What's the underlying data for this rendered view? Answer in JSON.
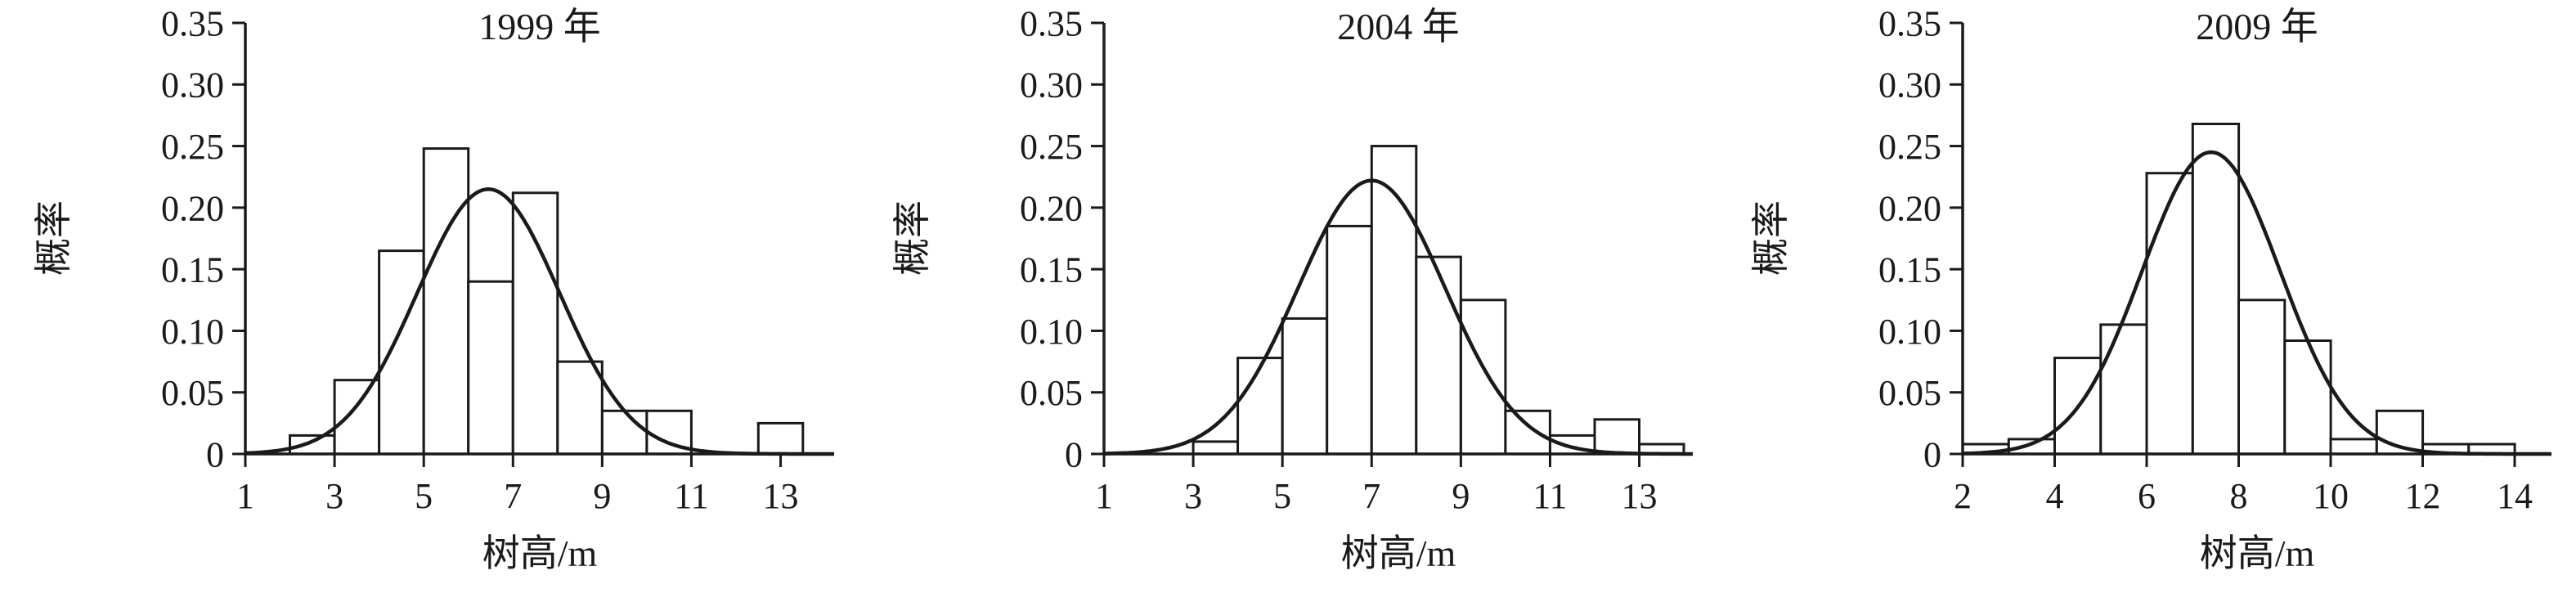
{
  "figure": {
    "background": "#ffffff",
    "ink": "#1a1a1a"
  },
  "chart_data": [
    {
      "type": "bar",
      "subtype": "histogram-with-normal-curve",
      "title": "1999 年",
      "xlabel": "树高/m",
      "ylabel": "概率",
      "xlim": [
        1,
        14.2
      ],
      "ylim": [
        0,
        0.35
      ],
      "xticks": [
        1,
        3,
        5,
        7,
        9,
        11,
        13
      ],
      "yticks": [
        0,
        0.05,
        0.1,
        0.15,
        0.2,
        0.25,
        0.3,
        0.35
      ],
      "ytick_labels": [
        "0",
        "0.05",
        "0.10",
        "0.15",
        "0.20",
        "0.25",
        "0.30",
        "0.35"
      ],
      "bin_width": 1,
      "bars": [
        {
          "x0": 2,
          "h": 0.015
        },
        {
          "x0": 3,
          "h": 0.06
        },
        {
          "x0": 4,
          "h": 0.165
        },
        {
          "x0": 5,
          "h": 0.248
        },
        {
          "x0": 6,
          "h": 0.14
        },
        {
          "x0": 7,
          "h": 0.212
        },
        {
          "x0": 8,
          "h": 0.075
        },
        {
          "x0": 9,
          "h": 0.035
        },
        {
          "x0": 10,
          "h": 0.035
        },
        {
          "x0": 12.5,
          "h": 0.025
        }
      ],
      "curve": {
        "mean": 6.45,
        "sd": 1.6,
        "peak": 0.215
      }
    },
    {
      "type": "bar",
      "subtype": "histogram-with-normal-curve",
      "title": "2004 年",
      "xlabel": "树高/m",
      "ylabel": "概率",
      "xlim": [
        1,
        14.2
      ],
      "ylim": [
        0,
        0.35
      ],
      "xticks": [
        1,
        3,
        5,
        7,
        9,
        11,
        13
      ],
      "yticks": [
        0,
        0.05,
        0.1,
        0.15,
        0.2,
        0.25,
        0.3,
        0.35
      ],
      "ytick_labels": [
        "0",
        "0.05",
        "0.10",
        "0.15",
        "0.20",
        "0.25",
        "0.30",
        "0.35"
      ],
      "bin_width": 1,
      "bars": [
        {
          "x0": 3,
          "h": 0.01
        },
        {
          "x0": 4,
          "h": 0.078
        },
        {
          "x0": 5,
          "h": 0.11
        },
        {
          "x0": 6,
          "h": 0.185
        },
        {
          "x0": 7,
          "h": 0.25
        },
        {
          "x0": 8,
          "h": 0.16
        },
        {
          "x0": 9,
          "h": 0.125
        },
        {
          "x0": 10,
          "h": 0.035
        },
        {
          "x0": 11,
          "h": 0.015
        },
        {
          "x0": 12,
          "h": 0.028
        },
        {
          "x0": 13,
          "h": 0.008
        }
      ],
      "curve": {
        "mean": 7.0,
        "sd": 1.65,
        "peak": 0.222
      }
    },
    {
      "type": "bar",
      "subtype": "histogram-with-normal-curve",
      "title": "2009 年",
      "xlabel": "树高/m",
      "ylabel": "概率",
      "xlim": [
        2,
        14.8
      ],
      "ylim": [
        0,
        0.35
      ],
      "xticks": [
        2,
        4,
        6,
        8,
        10,
        12,
        14
      ],
      "yticks": [
        0,
        0.05,
        0.1,
        0.15,
        0.2,
        0.25,
        0.3,
        0.35
      ],
      "ytick_labels": [
        "0",
        "0.05",
        "0.10",
        "0.15",
        "0.20",
        "0.25",
        "0.30",
        "0.35"
      ],
      "bin_width": 1,
      "bars": [
        {
          "x0": 2,
          "h": 0.008
        },
        {
          "x0": 3,
          "h": 0.012
        },
        {
          "x0": 4,
          "h": 0.078
        },
        {
          "x0": 5,
          "h": 0.105
        },
        {
          "x0": 6,
          "h": 0.228
        },
        {
          "x0": 7,
          "h": 0.268
        },
        {
          "x0": 8,
          "h": 0.125
        },
        {
          "x0": 9,
          "h": 0.092
        },
        {
          "x0": 10,
          "h": 0.012
        },
        {
          "x0": 11,
          "h": 0.035
        },
        {
          "x0": 12,
          "h": 0.008
        },
        {
          "x0": 13,
          "h": 0.008
        }
      ],
      "curve": {
        "mean": 7.4,
        "sd": 1.5,
        "peak": 0.245
      }
    }
  ]
}
